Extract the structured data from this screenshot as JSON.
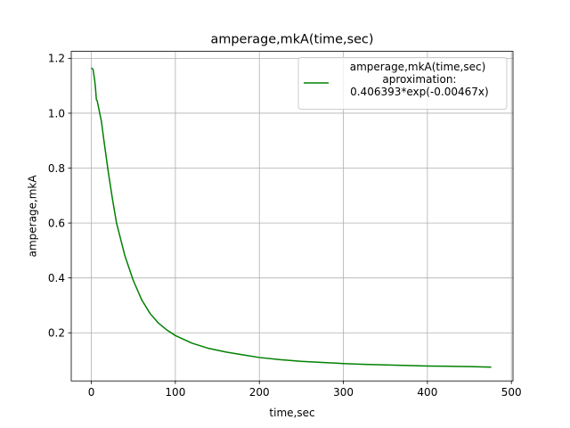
{
  "chart_data": {
    "type": "line",
    "title": "amperage,mkA(time,sec)",
    "xlabel": "time,sec",
    "ylabel": "amperage,mkA",
    "xlim": [
      -23.9,
      501.9
    ],
    "ylim": [
      0.0247,
      1.2253
    ],
    "xticks": [
      0,
      100,
      200,
      300,
      400,
      500
    ],
    "xtick_labels": [
      "0",
      "100",
      "200",
      "300",
      "400",
      "500"
    ],
    "yticks": [
      0.2,
      0.4,
      0.6,
      0.8,
      1.0,
      1.2
    ],
    "ytick_labels": [
      "0.2",
      "0.4",
      "0.6",
      "0.8",
      "1.0",
      "1.2"
    ],
    "grid": true,
    "legend": {
      "placement": "upper-right"
    },
    "series": [
      {
        "name": "amperage,mkA(time,sec)\n aproximation:\n 0.406393*exp(-0.00467x)",
        "color": "#008000",
        "x": [
          0,
          2,
          4,
          5,
          6,
          7,
          8,
          10,
          12,
          15,
          20,
          25,
          30,
          40,
          50,
          60,
          70,
          80,
          90,
          100,
          120,
          140,
          160,
          180,
          200,
          225,
          250,
          275,
          300,
          325,
          350,
          375,
          400,
          425,
          450,
          476
        ],
        "y": [
          1.165,
          1.16,
          1.12,
          1.09,
          1.05,
          1.045,
          1.03,
          1.0,
          0.97,
          0.9,
          0.79,
          0.69,
          0.6,
          0.48,
          0.39,
          0.32,
          0.27,
          0.235,
          0.21,
          0.19,
          0.162,
          0.143,
          0.13,
          0.12,
          0.11,
          0.102,
          0.096,
          0.092,
          0.088,
          0.085,
          0.083,
          0.081,
          0.079,
          0.078,
          0.077,
          0.075
        ]
      }
    ]
  }
}
